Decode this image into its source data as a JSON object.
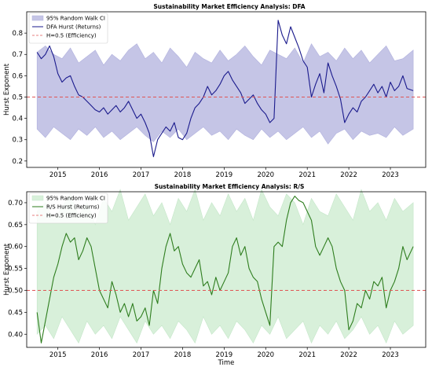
{
  "chart_data": [
    {
      "type": "line",
      "title": "Sustainability Market Efficiency Analysis: DFA",
      "xlabel": "",
      "ylabel": "Hurst Exponent",
      "xlim": [
        2014.25,
        2023.85
      ],
      "ylim": [
        0.17,
        0.9
      ],
      "x_ticks": [
        2015,
        2016,
        2017,
        2018,
        2019,
        2020,
        2021,
        2022,
        2023
      ],
      "x_tick_labels": [
        "2015",
        "2016",
        "2017",
        "2018",
        "2019",
        "2020",
        "2021",
        "2022",
        "2023"
      ],
      "y_ticks": [
        0.2,
        0.3,
        0.4,
        0.5,
        0.6,
        0.7,
        0.8
      ],
      "y_tick_labels": [
        "0.2",
        "0.3",
        "0.4",
        "0.5",
        "0.6",
        "0.7",
        "0.8"
      ],
      "grid": false,
      "legend_position": "upper-left",
      "colors": {
        "line": "#1a1a8c",
        "band": "#c5c5e6",
        "band_edge": "#b0b0dd",
        "reference": "#e05555"
      },
      "legend": [
        "95% Random Walk CI",
        "DFA Hurst (Returns)",
        "H=0.5 (Efficiency)"
      ],
      "reference_line": {
        "label": "H=0.5 (Efficiency)",
        "y": 0.5
      },
      "ci_band": {
        "name": "95% Random Walk CI",
        "x": [
          2014.5,
          2014.7,
          2014.9,
          2015.1,
          2015.3,
          2015.5,
          2015.7,
          2015.9,
          2016.1,
          2016.3,
          2016.5,
          2016.7,
          2016.9,
          2017.1,
          2017.3,
          2017.5,
          2017.7,
          2017.9,
          2018.1,
          2018.3,
          2018.5,
          2018.7,
          2018.9,
          2019.1,
          2019.3,
          2019.5,
          2019.7,
          2019.9,
          2020.1,
          2020.3,
          2020.5,
          2020.7,
          2020.9,
          2021.1,
          2021.3,
          2021.5,
          2021.7,
          2021.9,
          2022.1,
          2022.3,
          2022.5,
          2022.7,
          2022.9,
          2023.1,
          2023.3,
          2023.55
        ],
        "upper": [
          0.71,
          0.74,
          0.7,
          0.68,
          0.73,
          0.66,
          0.69,
          0.72,
          0.65,
          0.7,
          0.67,
          0.72,
          0.75,
          0.68,
          0.71,
          0.66,
          0.73,
          0.69,
          0.64,
          0.71,
          0.68,
          0.66,
          0.72,
          0.67,
          0.7,
          0.74,
          0.69,
          0.65,
          0.72,
          0.7,
          0.68,
          0.73,
          0.66,
          0.75,
          0.69,
          0.71,
          0.67,
          0.73,
          0.68,
          0.72,
          0.66,
          0.7,
          0.74,
          0.67,
          0.68,
          0.72
        ],
        "lower": [
          0.35,
          0.31,
          0.36,
          0.33,
          0.3,
          0.35,
          0.32,
          0.36,
          0.31,
          0.34,
          0.3,
          0.33,
          0.36,
          0.32,
          0.29,
          0.34,
          0.31,
          0.35,
          0.3,
          0.33,
          0.36,
          0.32,
          0.34,
          0.3,
          0.35,
          0.32,
          0.3,
          0.35,
          0.31,
          0.34,
          0.3,
          0.33,
          0.36,
          0.31,
          0.34,
          0.28,
          0.33,
          0.35,
          0.3,
          0.34,
          0.32,
          0.33,
          0.31,
          0.36,
          0.32,
          0.35
        ]
      },
      "series": [
        {
          "name": "DFA Hurst (Returns)",
          "x": [
            2014.5,
            2014.6,
            2014.7,
            2014.8,
            2014.9,
            2015.0,
            2015.1,
            2015.2,
            2015.3,
            2015.4,
            2015.5,
            2015.6,
            2015.7,
            2015.8,
            2015.9,
            2016.0,
            2016.1,
            2016.2,
            2016.3,
            2016.4,
            2016.5,
            2016.6,
            2016.7,
            2016.8,
            2016.9,
            2017.0,
            2017.1,
            2017.2,
            2017.3,
            2017.4,
            2017.5,
            2017.6,
            2017.7,
            2017.8,
            2017.9,
            2018.0,
            2018.1,
            2018.2,
            2018.3,
            2018.4,
            2018.5,
            2018.6,
            2018.7,
            2018.8,
            2018.9,
            2019.0,
            2019.1,
            2019.2,
            2019.3,
            2019.4,
            2019.5,
            2019.6,
            2019.7,
            2019.8,
            2019.9,
            2020.0,
            2020.1,
            2020.2,
            2020.3,
            2020.4,
            2020.5,
            2020.6,
            2020.7,
            2020.8,
            2020.9,
            2021.0,
            2021.1,
            2021.2,
            2021.3,
            2021.4,
            2021.5,
            2021.6,
            2021.7,
            2021.8,
            2021.9,
            2022.0,
            2022.1,
            2022.2,
            2022.3,
            2022.4,
            2022.5,
            2022.6,
            2022.7,
            2022.8,
            2022.9,
            2023.0,
            2023.1,
            2023.2,
            2023.3,
            2023.4,
            2023.55
          ],
          "y": [
            0.71,
            0.68,
            0.7,
            0.74,
            0.69,
            0.61,
            0.57,
            0.59,
            0.6,
            0.55,
            0.51,
            0.5,
            0.48,
            0.46,
            0.44,
            0.43,
            0.45,
            0.42,
            0.44,
            0.46,
            0.43,
            0.45,
            0.48,
            0.44,
            0.4,
            0.42,
            0.38,
            0.33,
            0.22,
            0.3,
            0.33,
            0.36,
            0.34,
            0.38,
            0.31,
            0.3,
            0.33,
            0.4,
            0.45,
            0.47,
            0.5,
            0.55,
            0.51,
            0.53,
            0.56,
            0.6,
            0.62,
            0.58,
            0.55,
            0.52,
            0.47,
            0.49,
            0.51,
            0.47,
            0.44,
            0.42,
            0.38,
            0.4,
            0.86,
            0.79,
            0.75,
            0.83,
            0.78,
            0.73,
            0.67,
            0.64,
            0.5,
            0.56,
            0.61,
            0.52,
            0.66,
            0.6,
            0.55,
            0.49,
            0.38,
            0.42,
            0.45,
            0.43,
            0.48,
            0.5,
            0.53,
            0.56,
            0.52,
            0.55,
            0.5,
            0.57,
            0.53,
            0.55,
            0.6,
            0.54,
            0.53
          ]
        }
      ]
    },
    {
      "type": "line",
      "title": "Sustainability Market Efficiency Analysis: R/S",
      "xlabel": "Time",
      "ylabel": "Hurst Exponent",
      "xlim": [
        2014.25,
        2023.85
      ],
      "ylim": [
        0.37,
        0.725
      ],
      "x_ticks": [
        2015,
        2016,
        2017,
        2018,
        2019,
        2020,
        2021,
        2022,
        2023
      ],
      "x_tick_labels": [
        "2015",
        "2016",
        "2017",
        "2018",
        "2019",
        "2020",
        "2021",
        "2022",
        "2023"
      ],
      "y_ticks": [
        0.4,
        0.45,
        0.5,
        0.55,
        0.6,
        0.65,
        0.7
      ],
      "y_tick_labels": [
        "0.40",
        "0.45",
        "0.50",
        "0.55",
        "0.60",
        "0.65",
        "0.70"
      ],
      "grid": false,
      "legend_position": "upper-left",
      "colors": {
        "line": "#2e7d1e",
        "band": "#d8f0da",
        "band_edge": "#c4e6c8",
        "reference": "#e05555"
      },
      "legend": [
        "95% Random Walk CI",
        "R/S Hurst (Returns)",
        "H=0.5 (Efficiency)"
      ],
      "reference_line": {
        "label": "H=0.5 (Efficiency)",
        "y": 0.5
      },
      "ci_band": {
        "name": "95% Random Walk CI",
        "x": [
          2014.5,
          2014.7,
          2014.9,
          2015.1,
          2015.3,
          2015.5,
          2015.7,
          2015.9,
          2016.1,
          2016.3,
          2016.5,
          2016.7,
          2016.9,
          2017.1,
          2017.3,
          2017.5,
          2017.7,
          2017.9,
          2018.1,
          2018.3,
          2018.5,
          2018.7,
          2018.9,
          2019.1,
          2019.3,
          2019.5,
          2019.7,
          2019.9,
          2020.1,
          2020.3,
          2020.5,
          2020.7,
          2020.9,
          2021.1,
          2021.3,
          2021.5,
          2021.7,
          2021.9,
          2022.1,
          2022.3,
          2022.5,
          2022.7,
          2022.9,
          2023.1,
          2023.3,
          2023.55
        ],
        "upper": [
          0.68,
          0.7,
          0.66,
          0.69,
          0.72,
          0.67,
          0.7,
          0.65,
          0.71,
          0.68,
          0.73,
          0.66,
          0.69,
          0.72,
          0.67,
          0.7,
          0.65,
          0.71,
          0.68,
          0.73,
          0.66,
          0.7,
          0.67,
          0.72,
          0.68,
          0.71,
          0.66,
          0.73,
          0.69,
          0.67,
          0.72,
          0.7,
          0.65,
          0.71,
          0.68,
          0.67,
          0.72,
          0.69,
          0.66,
          0.73,
          0.68,
          0.7,
          0.66,
          0.71,
          0.68,
          0.7
        ],
        "lower": [
          0.4,
          0.42,
          0.39,
          0.44,
          0.41,
          0.38,
          0.43,
          0.4,
          0.42,
          0.39,
          0.44,
          0.41,
          0.38,
          0.43,
          0.4,
          0.42,
          0.39,
          0.43,
          0.41,
          0.38,
          0.44,
          0.4,
          0.42,
          0.39,
          0.43,
          0.41,
          0.38,
          0.42,
          0.4,
          0.44,
          0.39,
          0.41,
          0.43,
          0.38,
          0.42,
          0.4,
          0.43,
          0.39,
          0.41,
          0.44,
          0.4,
          0.42,
          0.38,
          0.43,
          0.4,
          0.42
        ]
      },
      "series": [
        {
          "name": "R/S Hurst (Returns)",
          "x": [
            2014.5,
            2014.6,
            2014.7,
            2014.8,
            2014.9,
            2015.0,
            2015.1,
            2015.2,
            2015.3,
            2015.4,
            2015.5,
            2015.6,
            2015.7,
            2015.8,
            2015.9,
            2016.0,
            2016.1,
            2016.2,
            2016.3,
            2016.4,
            2016.5,
            2016.6,
            2016.7,
            2016.8,
            2016.9,
            2017.0,
            2017.1,
            2017.2,
            2017.3,
            2017.4,
            2017.5,
            2017.6,
            2017.7,
            2017.8,
            2017.9,
            2018.0,
            2018.1,
            2018.2,
            2018.3,
            2018.4,
            2018.5,
            2018.6,
            2018.7,
            2018.8,
            2018.9,
            2019.0,
            2019.1,
            2019.2,
            2019.3,
            2019.4,
            2019.5,
            2019.6,
            2019.7,
            2019.8,
            2019.9,
            2020.0,
            2020.1,
            2020.2,
            2020.3,
            2020.4,
            2020.5,
            2020.6,
            2020.7,
            2020.8,
            2020.9,
            2021.0,
            2021.1,
            2021.2,
            2021.3,
            2021.4,
            2021.5,
            2021.6,
            2021.7,
            2021.8,
            2021.9,
            2022.0,
            2022.1,
            2022.2,
            2022.3,
            2022.4,
            2022.5,
            2022.6,
            2022.7,
            2022.8,
            2022.9,
            2023.0,
            2023.1,
            2023.2,
            2023.3,
            2023.4,
            2023.55
          ],
          "y": [
            0.45,
            0.38,
            0.43,
            0.48,
            0.53,
            0.56,
            0.6,
            0.63,
            0.61,
            0.62,
            0.57,
            0.59,
            0.62,
            0.6,
            0.55,
            0.5,
            0.48,
            0.46,
            0.52,
            0.49,
            0.45,
            0.47,
            0.44,
            0.47,
            0.43,
            0.44,
            0.46,
            0.42,
            0.5,
            0.47,
            0.55,
            0.6,
            0.63,
            0.59,
            0.6,
            0.56,
            0.54,
            0.53,
            0.55,
            0.57,
            0.51,
            0.52,
            0.49,
            0.53,
            0.5,
            0.52,
            0.54,
            0.6,
            0.62,
            0.58,
            0.6,
            0.55,
            0.53,
            0.52,
            0.48,
            0.45,
            0.42,
            0.6,
            0.61,
            0.6,
            0.66,
            0.7,
            0.715,
            0.705,
            0.7,
            0.68,
            0.66,
            0.6,
            0.58,
            0.6,
            0.62,
            0.6,
            0.55,
            0.52,
            0.5,
            0.41,
            0.43,
            0.47,
            0.46,
            0.5,
            0.48,
            0.52,
            0.51,
            0.53,
            0.46,
            0.5,
            0.52,
            0.55,
            0.6,
            0.57,
            0.6
          ]
        }
      ]
    }
  ]
}
